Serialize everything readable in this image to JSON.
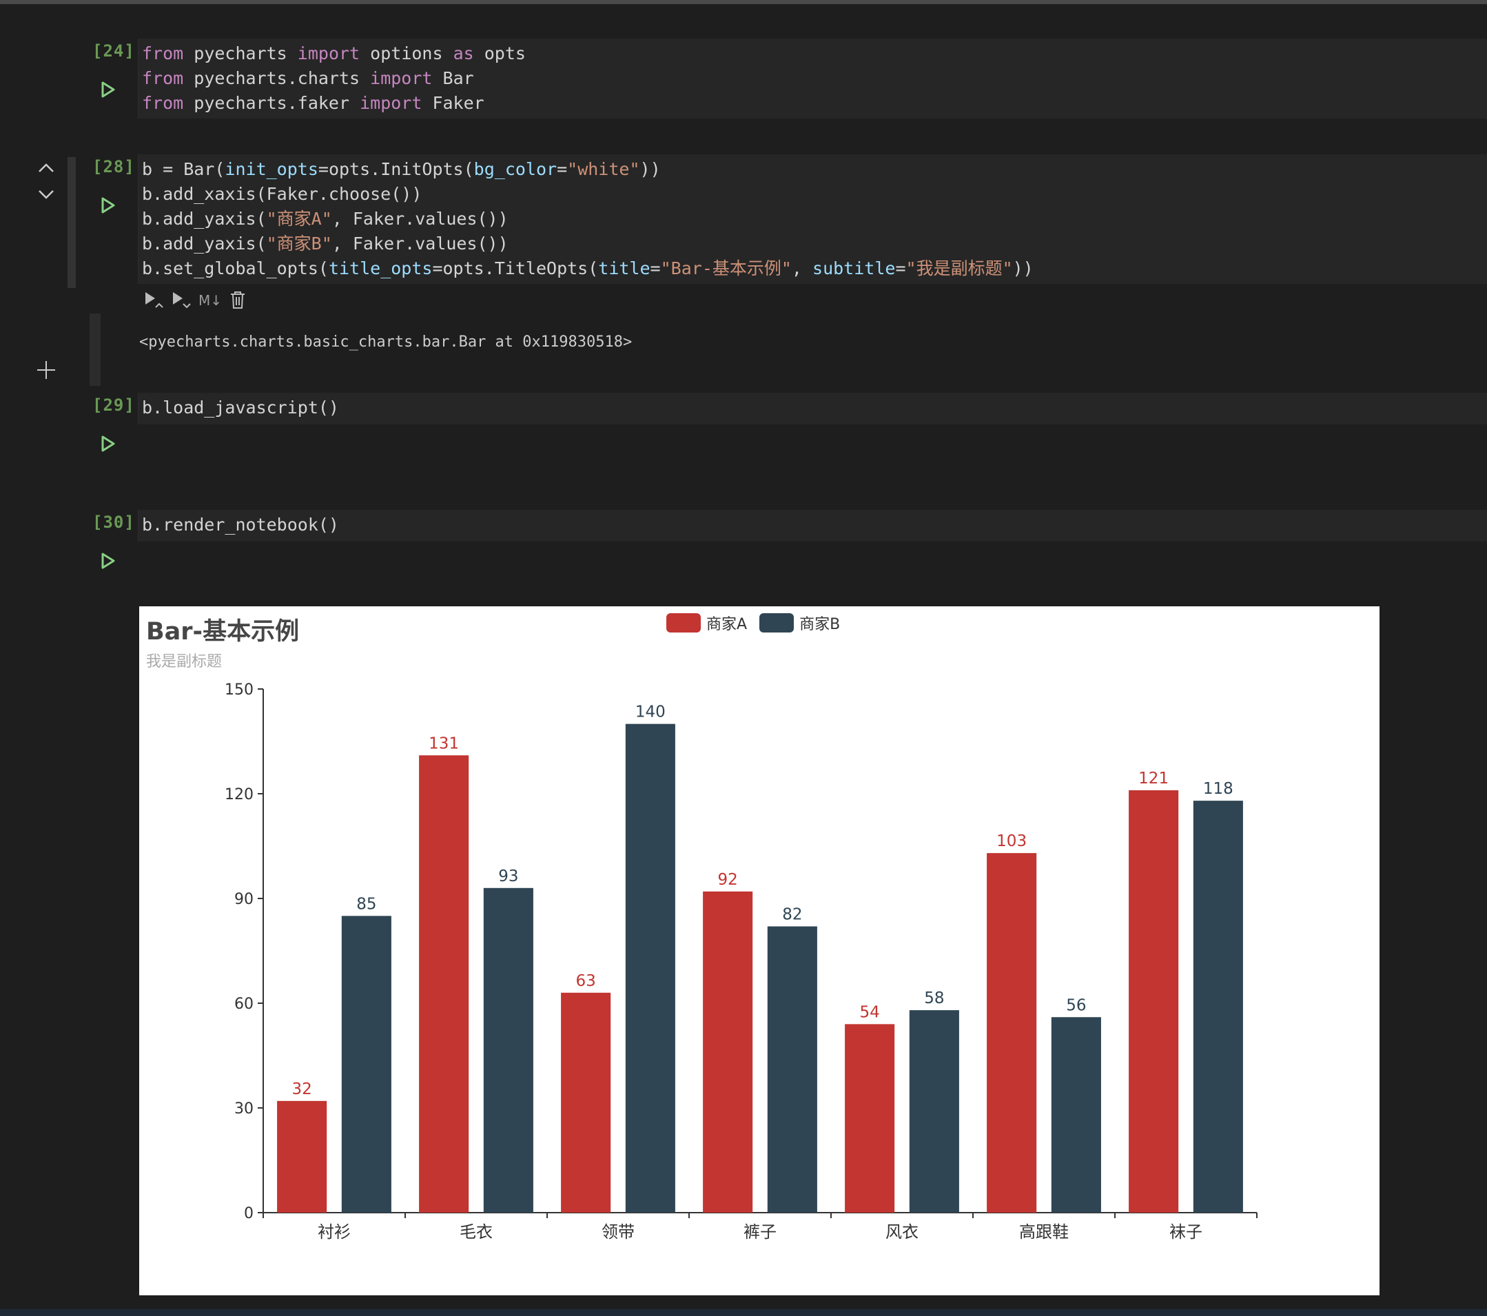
{
  "cells": [
    {
      "count": "[24]",
      "lines": [
        [
          [
            "kw",
            "from"
          ],
          [
            "plain",
            " pyecharts "
          ],
          [
            "kw",
            "import"
          ],
          [
            "plain",
            " options "
          ],
          [
            "kw",
            "as"
          ],
          [
            "plain",
            " opts"
          ]
        ],
        [
          [
            "kw",
            "from"
          ],
          [
            "plain",
            " pyecharts.charts "
          ],
          [
            "kw",
            "import"
          ],
          [
            "plain",
            " Bar"
          ]
        ],
        [
          [
            "kw",
            "from"
          ],
          [
            "plain",
            " pyecharts.faker "
          ],
          [
            "kw",
            "import"
          ],
          [
            "plain",
            " Faker"
          ]
        ]
      ]
    },
    {
      "count": "[28]",
      "lines": [
        [
          [
            "plain",
            "b = Bar("
          ],
          [
            "param",
            "init_opts"
          ],
          [
            "plain",
            "=opts.InitOpts("
          ],
          [
            "param",
            "bg_color"
          ],
          [
            "plain",
            "="
          ],
          [
            "str",
            "\"white\""
          ],
          [
            "plain",
            "))"
          ]
        ],
        [
          [
            "plain",
            "b.add_xaxis(Faker.choose())"
          ]
        ],
        [
          [
            "plain",
            "b.add_yaxis("
          ],
          [
            "str",
            "\"商家A\""
          ],
          [
            "plain",
            ", Faker.values())"
          ]
        ],
        [
          [
            "plain",
            "b.add_yaxis("
          ],
          [
            "str",
            "\"商家B\""
          ],
          [
            "plain",
            ", Faker.values())"
          ]
        ],
        [
          [
            "plain",
            "b.set_global_opts("
          ],
          [
            "param",
            "title_opts"
          ],
          [
            "plain",
            "=opts.TitleOpts("
          ],
          [
            "param",
            "title"
          ],
          [
            "plain",
            "="
          ],
          [
            "str",
            "\"Bar-基本示例\""
          ],
          [
            "plain",
            ", "
          ],
          [
            "param",
            "subtitle"
          ],
          [
            "plain",
            "="
          ],
          [
            "str",
            "\"我是副标题\""
          ],
          [
            "plain",
            "))"
          ]
        ]
      ]
    },
    {
      "count": "[29]",
      "lines": [
        [
          [
            "plain",
            "b.load_javascript()"
          ]
        ]
      ]
    },
    {
      "count": "[30]",
      "lines": [
        [
          [
            "plain",
            "b.render_notebook()"
          ]
        ]
      ]
    }
  ],
  "toolbar": {
    "markdown_label": "M↓"
  },
  "output": {
    "text": "<pyecharts.charts.basic_charts.bar.Bar at 0x119830518>"
  },
  "colors": {
    "series_a": "#c23531",
    "series_b": "#2f4554",
    "run_icon": "#89d185"
  },
  "chart_data": {
    "type": "bar",
    "title": "Bar-基本示例",
    "subtitle": "我是副标题",
    "categories": [
      "衬衫",
      "毛衣",
      "领带",
      "裤子",
      "风衣",
      "高跟鞋",
      "袜子"
    ],
    "series": [
      {
        "name": "商家A",
        "values": [
          32,
          131,
          63,
          92,
          54,
          103,
          121
        ]
      },
      {
        "name": "商家B",
        "values": [
          85,
          93,
          140,
          82,
          58,
          56,
          118
        ]
      }
    ],
    "ylim": [
      0,
      150
    ],
    "yticks": [
      0,
      30,
      60,
      90,
      120,
      150
    ],
    "xlabel": "",
    "ylabel": "",
    "legend_position": "top-center",
    "grid": false
  }
}
